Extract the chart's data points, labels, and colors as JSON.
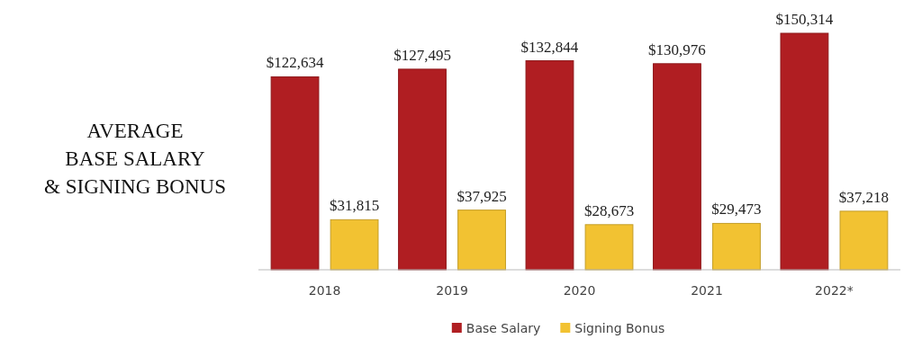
{
  "chart_data": {
    "type": "bar",
    "title": "AVERAGE\nBASE SALARY\n& SIGNING BONUS",
    "categories": [
      "2018",
      "2019",
      "2020",
      "2021",
      "2022*"
    ],
    "series": [
      {
        "name": "Base Salary",
        "color": "#b01e22",
        "values": [
          122634,
          127495,
          132844,
          130976,
          150314
        ],
        "value_labels": [
          "$122,634",
          "$127,495",
          "$132,844",
          "$130,976",
          "$150,314"
        ]
      },
      {
        "name": "Signing Bonus",
        "color": "#f2c232",
        "values": [
          31815,
          37925,
          28673,
          29473,
          37218
        ],
        "value_labels": [
          "$31,815",
          "$37,925",
          "$28,673",
          "$29,473",
          "$37,218"
        ]
      }
    ],
    "legend": "bottom"
  }
}
